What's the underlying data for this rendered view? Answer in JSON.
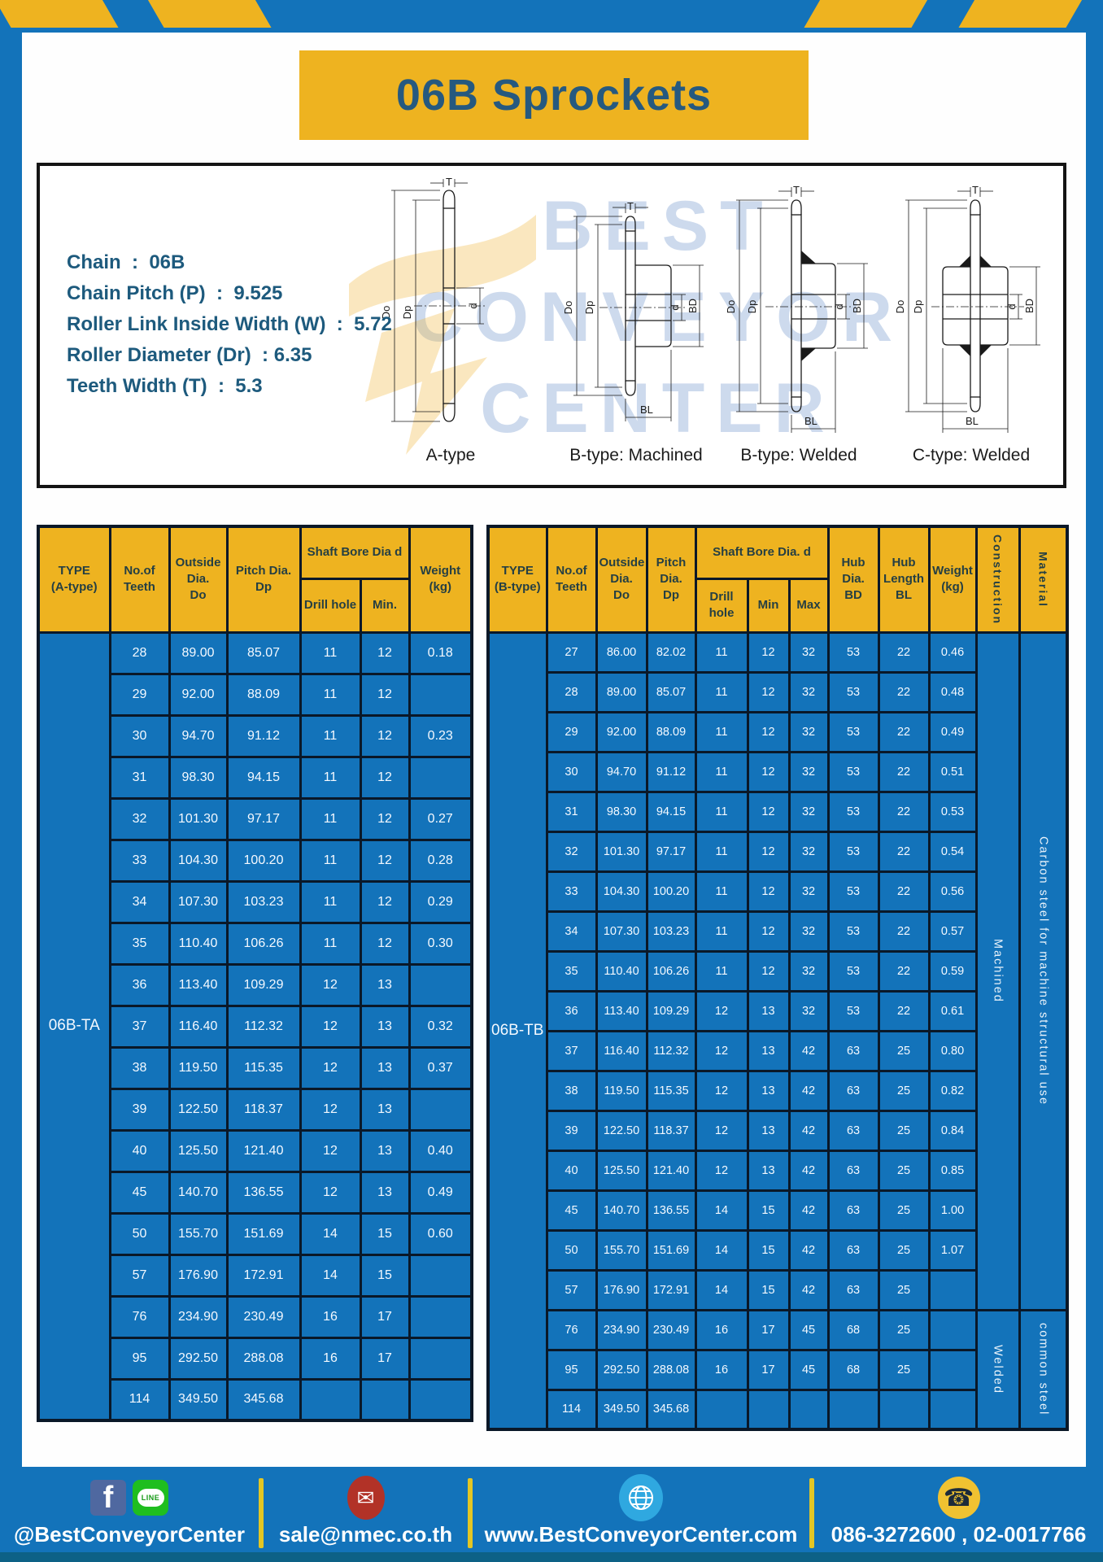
{
  "title": "06B Sprockets",
  "specs": [
    "Chain  :  06B",
    "Chain Pitch (P)  :  9.525",
    "Roller Link Inside Width (W)  :  5.72",
    "Roller Diameter (Dr)  : 6.35",
    "Teeth Width (T)  :  5.3"
  ],
  "watermark": [
    "BEST",
    "CONVEYOR",
    "CENTER"
  ],
  "drawings": {
    "captions": [
      "A-type",
      "B-type: Machined",
      "B-type: Welded",
      "C-type: Welded"
    ],
    "labels": {
      "t": "T",
      "do": "Do",
      "dp": "Dp",
      "d": "d",
      "bd": "BD",
      "bl": "BL"
    }
  },
  "table_a": {
    "headers": {
      "type": "TYPE\n(A-type)",
      "teeth": "No.of\nTeeth",
      "outside": "Outside\nDia.\nDo",
      "pitch": "Pitch Dia.\nDp",
      "shaft_group": "Shaft Bore Dia d",
      "drill": "Drill hole",
      "min": "Min.",
      "weight": "Weight\n(kg)"
    },
    "type_label": "06B-TA",
    "rows": [
      [
        "28",
        "89.00",
        "85.07",
        "11",
        "12",
        "0.18"
      ],
      [
        "29",
        "92.00",
        "88.09",
        "11",
        "12",
        ""
      ],
      [
        "30",
        "94.70",
        "91.12",
        "11",
        "12",
        "0.23"
      ],
      [
        "31",
        "98.30",
        "94.15",
        "11",
        "12",
        ""
      ],
      [
        "32",
        "101.30",
        "97.17",
        "11",
        "12",
        "0.27"
      ],
      [
        "33",
        "104.30",
        "100.20",
        "11",
        "12",
        "0.28"
      ],
      [
        "34",
        "107.30",
        "103.23",
        "11",
        "12",
        "0.29"
      ],
      [
        "35",
        "110.40",
        "106.26",
        "11",
        "12",
        "0.30"
      ],
      [
        "36",
        "113.40",
        "109.29",
        "12",
        "13",
        ""
      ],
      [
        "37",
        "116.40",
        "112.32",
        "12",
        "13",
        "0.32"
      ],
      [
        "38",
        "119.50",
        "115.35",
        "12",
        "13",
        "0.37"
      ],
      [
        "39",
        "122.50",
        "118.37",
        "12",
        "13",
        ""
      ],
      [
        "40",
        "125.50",
        "121.40",
        "12",
        "13",
        "0.40"
      ],
      [
        "45",
        "140.70",
        "136.55",
        "12",
        "13",
        "0.49"
      ],
      [
        "50",
        "155.70",
        "151.69",
        "14",
        "15",
        "0.60"
      ],
      [
        "57",
        "176.90",
        "172.91",
        "14",
        "15",
        ""
      ],
      [
        "76",
        "234.90",
        "230.49",
        "16",
        "17",
        ""
      ],
      [
        "95",
        "292.50",
        "288.08",
        "16",
        "17",
        ""
      ],
      [
        "114",
        "349.50",
        "345.68",
        "",
        "",
        ""
      ]
    ]
  },
  "table_b": {
    "headers": {
      "type": "TYPE\n(B-type)",
      "teeth": "No.of\nTeeth",
      "outside": "Outside\nDia.\nDo",
      "pitch": "Pitch\nDia.\nDp",
      "shaft_group": "Shaft Bore Dia. d",
      "drill": "Drill hole",
      "min": "Min",
      "max": "Max",
      "hub_dia": "Hub\nDia.\nBD",
      "hub_len": "Hub\nLength\nBL",
      "weight": "Weight\n(kg)",
      "construction": "Construction",
      "material": "Material"
    },
    "type_label": "06B-TB",
    "rows": [
      [
        "27",
        "86.00",
        "82.02",
        "11",
        "12",
        "32",
        "53",
        "22",
        "0.46"
      ],
      [
        "28",
        "89.00",
        "85.07",
        "11",
        "12",
        "32",
        "53",
        "22",
        "0.48"
      ],
      [
        "29",
        "92.00",
        "88.09",
        "11",
        "12",
        "32",
        "53",
        "22",
        "0.49"
      ],
      [
        "30",
        "94.70",
        "91.12",
        "11",
        "12",
        "32",
        "53",
        "22",
        "0.51"
      ],
      [
        "31",
        "98.30",
        "94.15",
        "11",
        "12",
        "32",
        "53",
        "22",
        "0.53"
      ],
      [
        "32",
        "101.30",
        "97.17",
        "11",
        "12",
        "32",
        "53",
        "22",
        "0.54"
      ],
      [
        "33",
        "104.30",
        "100.20",
        "11",
        "12",
        "32",
        "53",
        "22",
        "0.56"
      ],
      [
        "34",
        "107.30",
        "103.23",
        "11",
        "12",
        "32",
        "53",
        "22",
        "0.57"
      ],
      [
        "35",
        "110.40",
        "106.26",
        "11",
        "12",
        "32",
        "53",
        "22",
        "0.59"
      ],
      [
        "36",
        "113.40",
        "109.29",
        "12",
        "13",
        "32",
        "53",
        "22",
        "0.61"
      ],
      [
        "37",
        "116.40",
        "112.32",
        "12",
        "13",
        "42",
        "63",
        "25",
        "0.80"
      ],
      [
        "38",
        "119.50",
        "115.35",
        "12",
        "13",
        "42",
        "63",
        "25",
        "0.82"
      ],
      [
        "39",
        "122.50",
        "118.37",
        "12",
        "13",
        "42",
        "63",
        "25",
        "0.84"
      ],
      [
        "40",
        "125.50",
        "121.40",
        "12",
        "13",
        "42",
        "63",
        "25",
        "0.85"
      ],
      [
        "45",
        "140.70",
        "136.55",
        "14",
        "15",
        "42",
        "63",
        "25",
        "1.00"
      ],
      [
        "50",
        "155.70",
        "151.69",
        "14",
        "15",
        "42",
        "63",
        "25",
        "1.07"
      ],
      [
        "57",
        "176.90",
        "172.91",
        "14",
        "15",
        "42",
        "63",
        "25",
        ""
      ],
      [
        "76",
        "234.90",
        "230.49",
        "16",
        "17",
        "45",
        "68",
        "25",
        ""
      ],
      [
        "95",
        "292.50",
        "288.08",
        "16",
        "17",
        "45",
        "68",
        "25",
        ""
      ],
      [
        "114",
        "349.50",
        "345.68",
        "",
        "",
        "",
        "",
        "",
        ""
      ]
    ],
    "merged": [
      {
        "start": 0,
        "span": 17,
        "text": "Machined",
        "name": "construction-machined-cell"
      },
      {
        "start": 0,
        "span": 17,
        "text": "Carbon steel for machine structural use",
        "name": "material-carbon-steel-cell"
      },
      {
        "start": 17,
        "span": 3,
        "text": "Welded",
        "name": "construction-welded-cell"
      },
      {
        "start": 17,
        "span": 3,
        "text": "common steel",
        "name": "material-common-steel-cell"
      }
    ]
  },
  "footer": {
    "social": {
      "label": "@BestConveyorCenter",
      "facebook_glyph": "f",
      "line_text": "LINE"
    },
    "email": {
      "label": "sale@nmec.co.th",
      "glyph": "✉"
    },
    "website": {
      "label": "www.BestConveyorCenter.com"
    },
    "phone": {
      "label": "086-3272600 , 02-0017766",
      "glyph": "☎"
    }
  },
  "colors": {
    "blue": "#1373ba",
    "yellow": "#eeb320",
    "title_text": "#26597f",
    "table_border": "#0a1828",
    "footer_bottom_strip": "#0d6186"
  }
}
